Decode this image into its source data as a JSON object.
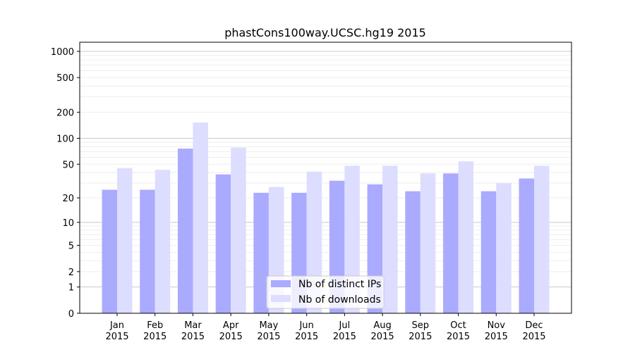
{
  "chart_data": {
    "type": "bar",
    "title": "phastCons100way.UCSC.hg19 2015",
    "xlabel": "",
    "ylabel": "",
    "yscale": "symlog",
    "ylim": [
      0,
      1200
    ],
    "yticks": [
      0,
      1,
      2,
      5,
      10,
      20,
      50,
      100,
      200,
      500,
      1000
    ],
    "grid": true,
    "legend_position": "bottom-center",
    "categories": [
      "Jan\n2015",
      "Feb\n2015",
      "Mar\n2015",
      "Apr\n2015",
      "May\n2015",
      "Jun\n2015",
      "Jul\n2015",
      "Aug\n2015",
      "Sep\n2015",
      "Oct\n2015",
      "Nov\n2015",
      "Dec\n2015"
    ],
    "series": [
      {
        "name": "Nb of distinct IPs",
        "color": "#aaaaff",
        "values": [
          25,
          25,
          76,
          38,
          23,
          23,
          32,
          29,
          24,
          39,
          24,
          34
        ]
      },
      {
        "name": "Nb of downloads",
        "color": "#ddddff",
        "values": [
          45,
          43,
          152,
          78,
          27,
          41,
          48,
          48,
          39,
          54,
          30,
          48
        ]
      }
    ]
  }
}
